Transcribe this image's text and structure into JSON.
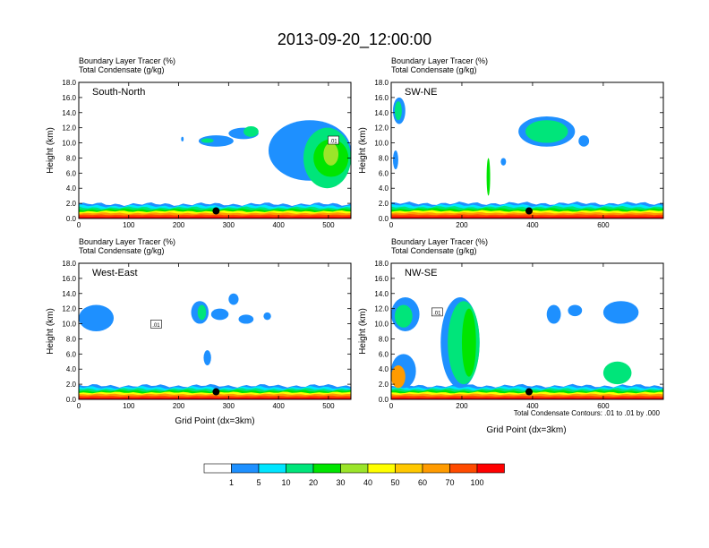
{
  "figure": {
    "title": "2013-09-20_12:00:00",
    "contour_note": "Total Condensate Contours: .01 to .01 by .000",
    "xlabel": "Grid Point (dx=3km)",
    "ylabel": "Height (km)",
    "header_line1": "Boundary Layer Tracer    (%)",
    "header_line2": "Total Condensate    (g/kg)"
  },
  "colorbar": {
    "levels": [
      "1",
      "5",
      "10",
      "20",
      "30",
      "40",
      "50",
      "60",
      "70",
      "100"
    ],
    "colors": [
      "#ffffff",
      "#1e90ff",
      "#00e5ff",
      "#00e57a",
      "#00e500",
      "#9be52a",
      "#ffff00",
      "#ffc800",
      "#ff9b00",
      "#ff4b00",
      "#ff0000"
    ]
  },
  "chart_data": [
    {
      "type": "heatmap",
      "panel": "South-North",
      "ylim": [
        0,
        18
      ],
      "xlim": [
        0,
        545
      ],
      "xticks": [
        "0",
        "100",
        "200",
        "300",
        "400",
        "500"
      ],
      "xtick_values": [
        0,
        100,
        200,
        300,
        400,
        500
      ],
      "yticks": [
        "0.0",
        "2.0",
        "4.0",
        "6.0",
        "8.0",
        "10.0",
        "12.0",
        "14.0",
        "16.0",
        "18.0"
      ],
      "marker": {
        "x": 275,
        "y": 1.0
      },
      "contour_labels": [
        {
          "text": ".01",
          "x": 510,
          "y": 10.3
        }
      ],
      "cloud_regions": [
        {
          "x": [
            205,
            210
          ],
          "y": [
            10.2,
            10.8
          ],
          "level": 1
        },
        {
          "x": [
            240,
            310
          ],
          "y": [
            9.5,
            11.0
          ],
          "level": 1
        },
        {
          "x": [
            245,
            270
          ],
          "y": [
            10.0,
            10.6
          ],
          "level": 3
        },
        {
          "x": [
            300,
            360
          ],
          "y": [
            10.5,
            12.0
          ],
          "level": 1
        },
        {
          "x": [
            330,
            360
          ],
          "y": [
            10.8,
            12.2
          ],
          "level": 3
        },
        {
          "x": [
            380,
            545
          ],
          "y": [
            5.0,
            13.0
          ],
          "level": 1
        },
        {
          "x": [
            450,
            545
          ],
          "y": [
            4.0,
            12.0
          ],
          "level": 3
        },
        {
          "x": [
            470,
            540
          ],
          "y": [
            5.5,
            10.5
          ],
          "level": 4
        },
        {
          "x": [
            490,
            520
          ],
          "y": [
            7.0,
            10.0
          ],
          "level": 5
        }
      ],
      "boundary_layer_top_km": 1.9
    },
    {
      "type": "heatmap",
      "panel": "SW-NE",
      "ylim": [
        0,
        18
      ],
      "xlim": [
        0,
        770
      ],
      "xticks": [
        "0",
        "200",
        "400",
        "600"
      ],
      "xtick_values": [
        0,
        200,
        400,
        600
      ],
      "yticks": [
        "0.0",
        "2.0",
        "4.0",
        "6.0",
        "8.0",
        "10.0",
        "12.0",
        "14.0",
        "16.0",
        "18.0"
      ],
      "marker": {
        "x": 390,
        "y": 1.0
      },
      "contour_labels": [],
      "cloud_regions": [
        {
          "x": [
            5,
            40
          ],
          "y": [
            12.5,
            16.0
          ],
          "level": 1
        },
        {
          "x": [
            10,
            30
          ],
          "y": [
            13.0,
            15.5
          ],
          "level": 3
        },
        {
          "x": [
            5,
            20
          ],
          "y": [
            6.5,
            9.0
          ],
          "level": 1
        },
        {
          "x": [
            270,
            280
          ],
          "y": [
            3.0,
            8.0
          ],
          "level": 4
        },
        {
          "x": [
            310,
            325
          ],
          "y": [
            7.0,
            8.0
          ],
          "level": 1
        },
        {
          "x": [
            360,
            520
          ],
          "y": [
            9.5,
            13.5
          ],
          "level": 1
        },
        {
          "x": [
            380,
            500
          ],
          "y": [
            10.0,
            13.0
          ],
          "level": 3
        },
        {
          "x": [
            530,
            560
          ],
          "y": [
            9.5,
            11.0
          ],
          "level": 1
        }
      ],
      "boundary_layer_top_km": 2.0
    },
    {
      "type": "heatmap",
      "panel": "West-East",
      "ylim": [
        0,
        18
      ],
      "xlim": [
        0,
        545
      ],
      "xticks": [
        "0",
        "100",
        "200",
        "300",
        "400",
        "500"
      ],
      "xtick_values": [
        0,
        100,
        200,
        300,
        400,
        500
      ],
      "yticks": [
        "0.0",
        "2.0",
        "4.0",
        "6.0",
        "8.0",
        "10.0",
        "12.0",
        "14.0",
        "16.0",
        "18.0"
      ],
      "marker": {
        "x": 275,
        "y": 1.0
      },
      "contour_labels": [
        {
          "text": ".01",
          "x": 155,
          "y": 9.9
        }
      ],
      "cloud_regions": [
        {
          "x": [
            0,
            70
          ],
          "y": [
            9.0,
            12.5
          ],
          "level": 1
        },
        {
          "x": [
            225,
            260
          ],
          "y": [
            10.0,
            13.0
          ],
          "level": 1
        },
        {
          "x": [
            238,
            255
          ],
          "y": [
            10.5,
            12.5
          ],
          "level": 3
        },
        {
          "x": [
            265,
            300
          ],
          "y": [
            10.5,
            12.0
          ],
          "level": 1
        },
        {
          "x": [
            300,
            320
          ],
          "y": [
            12.5,
            14.0
          ],
          "level": 1
        },
        {
          "x": [
            320,
            350
          ],
          "y": [
            10.0,
            11.2
          ],
          "level": 1
        },
        {
          "x": [
            370,
            385
          ],
          "y": [
            10.5,
            11.5
          ],
          "level": 1
        },
        {
          "x": [
            250,
            265
          ],
          "y": [
            4.5,
            6.5
          ],
          "level": 1
        }
      ],
      "boundary_layer_top_km": 1.8
    },
    {
      "type": "heatmap",
      "panel": "NW-SE",
      "ylim": [
        0,
        18
      ],
      "xlim": [
        0,
        770
      ],
      "xticks": [
        "0",
        "200",
        "400",
        "600"
      ],
      "xtick_values": [
        0,
        200,
        400,
        600
      ],
      "yticks": [
        "0.0",
        "2.0",
        "4.0",
        "6.0",
        "8.0",
        "10.0",
        "12.0",
        "14.0",
        "16.0",
        "18.0"
      ],
      "marker": {
        "x": 390,
        "y": 1.0
      },
      "contour_labels": [
        {
          "text": ".01",
          "x": 130,
          "y": 11.5
        }
      ],
      "cloud_regions": [
        {
          "x": [
            0,
            80
          ],
          "y": [
            9.0,
            13.5
          ],
          "level": 1
        },
        {
          "x": [
            10,
            60
          ],
          "y": [
            9.5,
            12.5
          ],
          "level": 3
        },
        {
          "x": [
            0,
            70
          ],
          "y": [
            1.5,
            6.0
          ],
          "level": 1
        },
        {
          "x": [
            0,
            40
          ],
          "y": [
            1.5,
            4.5
          ],
          "level": 8
        },
        {
          "x": [
            140,
            250
          ],
          "y": [
            1.5,
            13.5
          ],
          "level": 1
        },
        {
          "x": [
            160,
            250
          ],
          "y": [
            2.0,
            13.0
          ],
          "level": 3
        },
        {
          "x": [
            200,
            240
          ],
          "y": [
            3.0,
            12.0
          ],
          "level": 4
        },
        {
          "x": [
            440,
            480
          ],
          "y": [
            10.0,
            12.5
          ],
          "level": 1
        },
        {
          "x": [
            500,
            540
          ],
          "y": [
            11.0,
            12.5
          ],
          "level": 1
        },
        {
          "x": [
            600,
            700
          ],
          "y": [
            10.0,
            13.0
          ],
          "level": 1
        },
        {
          "x": [
            600,
            680
          ],
          "y": [
            2.0,
            5.0
          ],
          "level": 3
        }
      ],
      "boundary_layer_top_km": 1.8
    }
  ]
}
